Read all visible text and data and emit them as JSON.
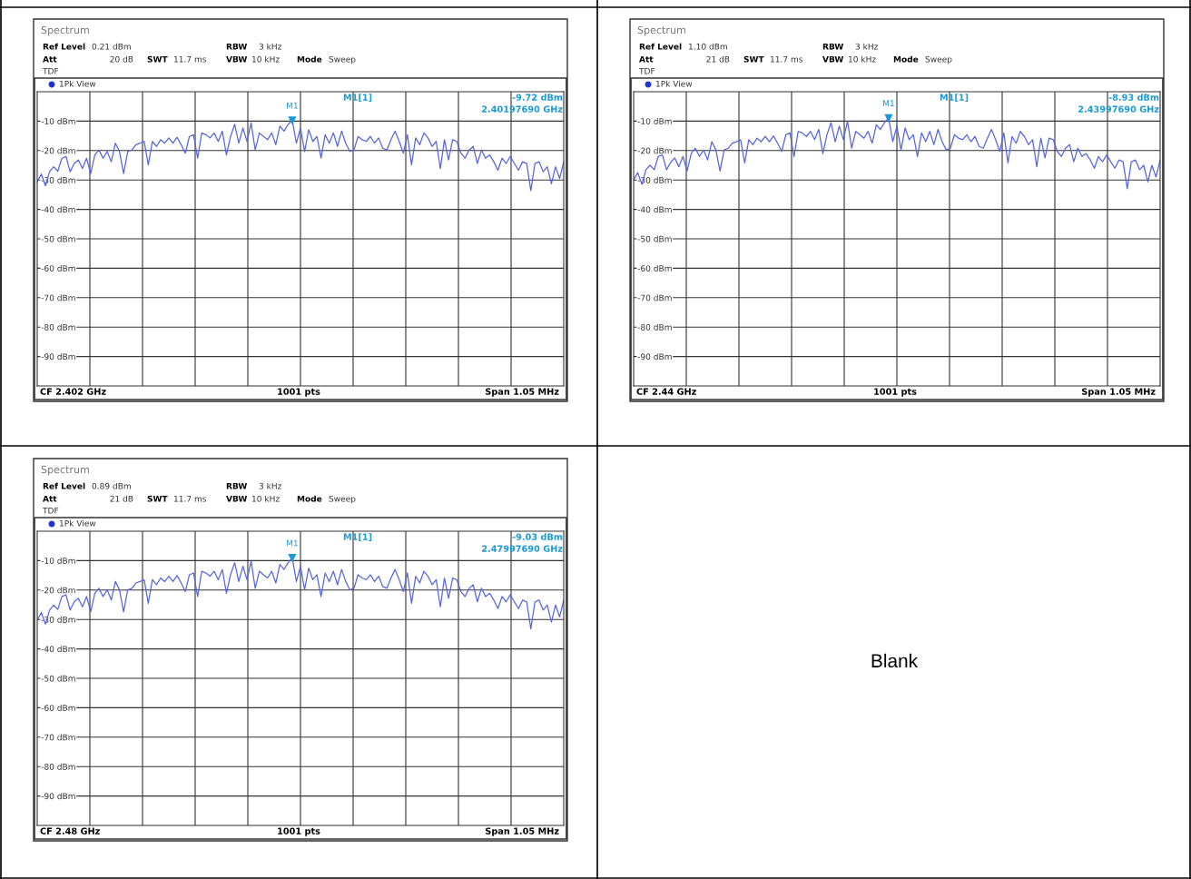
{
  "chart_data": [
    {
      "type": "line",
      "categories": [
        null,
        null,
        null,
        null,
        null,
        null,
        null,
        null,
        null,
        null,
        null,
        null,
        null,
        null,
        null,
        null,
        null,
        null,
        null,
        null,
        null,
        null,
        null,
        null,
        null,
        null,
        null,
        null,
        null,
        null,
        null,
        null,
        null,
        null,
        null,
        null,
        null,
        null,
        null,
        null,
        null,
        null,
        null,
        null,
        null,
        null,
        null,
        null,
        null,
        null,
        null,
        null,
        null,
        null,
        null,
        null,
        null,
        null,
        null,
        null,
        null,
        null,
        null,
        null,
        null,
        null,
        null,
        null,
        null,
        null,
        null,
        null,
        null,
        null,
        null,
        null,
        null,
        null,
        null,
        null,
        null,
        null,
        null,
        null,
        null,
        null,
        null,
        null,
        null,
        null,
        null,
        null,
        null,
        null,
        null,
        null,
        null,
        null,
        null,
        null,
        null,
        null,
        null,
        null,
        null,
        null,
        null,
        null,
        null,
        null,
        null,
        null,
        null,
        null,
        null,
        null,
        null,
        null,
        null,
        null,
        null,
        null,
        null,
        null,
        null,
        null,
        null,
        null,
        null
      ],
      "series": [
        {
          "color": "#5566dd",
          "values": [
            -30.7,
            -28,
            -32,
            -27.2,
            -25.5,
            -27,
            -22.6,
            -22,
            -27.2,
            -24.4,
            -23.2,
            -26.1,
            -22.6,
            -27.8,
            -21.5,
            -19.8,
            -22.6,
            -20.3,
            -23.8,
            -17.5,
            -20.3,
            -27.8,
            -20.3,
            -19.8,
            -18,
            -17.5,
            -16.9,
            -24.9,
            -16.9,
            -18.6,
            -16.3,
            -17.5,
            -15.7,
            -17.5,
            -15.5,
            -18,
            -20.9,
            -15.2,
            -14.6,
            -22.6,
            -14,
            -14.6,
            -15.7,
            -14,
            -16.9,
            -13.4,
            -21.5,
            -15.2,
            -11.1,
            -17.5,
            -12.3,
            -16.9,
            -10.6,
            -19.8,
            -14,
            -15.2,
            -16.3,
            -14,
            -18,
            -11.7,
            -13.4,
            -11.1,
            -9.7,
            -17.5,
            -12.3,
            -20.3,
            -12.9,
            -16.9,
            -15.2,
            -22.6,
            -14.6,
            -17.5,
            -14,
            -18.6,
            -13.4,
            -17.5,
            -20.3,
            -19.8,
            -15.2,
            -16.3,
            -16.9,
            -15.2,
            -17.5,
            -15.7,
            -19.2,
            -19.8,
            -16.3,
            -13.4,
            -16.9,
            -20.9,
            -14.6,
            -24.9,
            -15.7,
            -18,
            -14,
            -15.7,
            -18.6,
            -16.9,
            -26.1,
            -16.3,
            -23.2,
            -16.3,
            -16.9,
            -20.9,
            -22.6,
            -19.8,
            -18.6,
            -24.4,
            -19.8,
            -22.6,
            -21.5,
            -23.8,
            -26.7,
            -22.6,
            -24.4,
            -22,
            -24.4,
            -26.7,
            -23.8,
            -24.4,
            -33.6,
            -24.4,
            -23.8,
            -27.2,
            -25.5,
            -31.3,
            -25.5,
            -29.5,
            -23.8
          ]
        }
      ],
      "ylim": [
        -100,
        0
      ],
      "yticks": [
        {
          "value": -10,
          "label": "-10 dBm"
        },
        {
          "value": -20,
          "label": "-20 dBm"
        },
        {
          "value": -30,
          "label": "-30 dBm"
        },
        {
          "value": -40,
          "label": "-40 dBm"
        },
        {
          "value": -50,
          "label": "-50 dBm"
        },
        {
          "value": -60,
          "label": "-60 dBm"
        },
        {
          "value": -70,
          "label": "-70 dBm"
        },
        {
          "value": -80,
          "label": "-80 dBm"
        },
        {
          "value": -90,
          "label": "-90 dBm"
        }
      ],
      "grid": true,
      "tick_labels": "y",
      "annotations": [
        "Spectrum",
        "Ref Level",
        "0.21 dBm",
        "Att",
        "20 dB",
        "SWT",
        "11.7 ms",
        "RBW",
        "3 kHz",
        "VBW",
        "10 kHz",
        "Mode",
        "Sweep",
        "TDF",
        "1Pk View",
        "M1[1]",
        "-9.72 dBm",
        "2.40197690 GHz",
        "CF 2.402 GHz",
        "1001 pts",
        "Span 1.05 MHz",
        {
          "text": "M1",
          "y": -9.72
        }
      ]
    },
    {
      "type": "line",
      "categories": [
        null,
        null,
        null,
        null,
        null,
        null,
        null,
        null,
        null,
        null,
        null,
        null,
        null,
        null,
        null,
        null,
        null,
        null,
        null,
        null,
        null,
        null,
        null,
        null,
        null,
        null,
        null,
        null,
        null,
        null,
        null,
        null,
        null,
        null,
        null,
        null,
        null,
        null,
        null,
        null,
        null,
        null,
        null,
        null,
        null,
        null,
        null,
        null,
        null,
        null,
        null,
        null,
        null,
        null,
        null,
        null,
        null,
        null,
        null,
        null,
        null,
        null,
        null,
        null,
        null,
        null,
        null,
        null,
        null,
        null,
        null,
        null,
        null,
        null,
        null,
        null,
        null,
        null,
        null,
        null,
        null,
        null,
        null,
        null,
        null,
        null,
        null,
        null,
        null,
        null,
        null,
        null,
        null,
        null,
        null,
        null,
        null,
        null,
        null,
        null,
        null,
        null,
        null,
        null,
        null,
        null,
        null,
        null,
        null,
        null,
        null,
        null,
        null,
        null,
        null,
        null,
        null,
        null,
        null,
        null,
        null,
        null,
        null,
        null,
        null,
        null,
        null,
        null,
        null
      ],
      "series": [
        {
          "color": "#5566dd",
          "values": [
            -30,
            -27.5,
            -31.5,
            -26.5,
            -25,
            -26.5,
            -22,
            -21.5,
            -26.5,
            -24,
            -22.5,
            -25.5,
            -22,
            -27,
            -21,
            -19.2,
            -22,
            -19.8,
            -23.2,
            -17,
            -19.8,
            -27,
            -19.8,
            -19.2,
            -17.5,
            -17,
            -16.3,
            -24.2,
            -16.3,
            -18,
            -15.8,
            -17,
            -15.2,
            -17,
            -15,
            -17.5,
            -20.3,
            -14.6,
            -14,
            -22,
            -13.5,
            -14,
            -15.2,
            -13.5,
            -16.3,
            -12.8,
            -21,
            -14.6,
            -10.5,
            -17,
            -11.7,
            -16.3,
            -10,
            -19.2,
            -13.5,
            -14.6,
            -15.8,
            -13.5,
            -17.5,
            -11.2,
            -12.8,
            -10.5,
            -8.9,
            -17,
            -11.7,
            -19.8,
            -12.3,
            -16.3,
            -14.6,
            -22,
            -14,
            -17,
            -13.5,
            -18,
            -12.8,
            -17,
            -19.8,
            -19.2,
            -14.6,
            -15.8,
            -16.3,
            -14.6,
            -17,
            -15.2,
            -18.6,
            -19.2,
            -15.8,
            -12.8,
            -16.3,
            -20.3,
            -14,
            -24.2,
            -15.2,
            -17.5,
            -13.5,
            -15.2,
            -18,
            -16.3,
            -25.5,
            -15.8,
            -22.5,
            -15.8,
            -16.3,
            -20.3,
            -22,
            -19.2,
            -18,
            -23.8,
            -19.2,
            -22,
            -21,
            -23.2,
            -26,
            -22,
            -23.8,
            -21.5,
            -23.8,
            -26,
            -23.2,
            -23.8,
            -33,
            -23.8,
            -23.2,
            -26.5,
            -25,
            -30.7,
            -25,
            -29,
            -23.2
          ]
        }
      ],
      "ylim": [
        -100,
        0
      ],
      "yticks": [
        {
          "value": -10,
          "label": "-10 dBm"
        },
        {
          "value": -20,
          "label": "-20 dBm"
        },
        {
          "value": -30,
          "label": "-30 dBm"
        },
        {
          "value": -40,
          "label": "-40 dBm"
        },
        {
          "value": -50,
          "label": "-50 dBm"
        },
        {
          "value": -60,
          "label": "-60 dBm"
        },
        {
          "value": -70,
          "label": "-70 dBm"
        },
        {
          "value": -80,
          "label": "-80 dBm"
        },
        {
          "value": -90,
          "label": "-90 dBm"
        }
      ],
      "grid": true,
      "tick_labels": "y",
      "annotations": [
        "Spectrum",
        "Ref Level",
        "1.10 dBm",
        "Att",
        "21 dB",
        "SWT",
        "11.7 ms",
        "RBW",
        "3 kHz",
        "VBW",
        "10 kHz",
        "Mode",
        "Sweep",
        "TDF",
        "1Pk View",
        "M1[1]",
        "-8.93 dBm",
        "2.43997690 GHz",
        "CF 2.44 GHz",
        "1001 pts",
        "Span 1.05 MHz",
        {
          "text": "M1",
          "y": -8.93
        }
      ]
    },
    {
      "type": "line",
      "categories": [
        null,
        null,
        null,
        null,
        null,
        null,
        null,
        null,
        null,
        null,
        null,
        null,
        null,
        null,
        null,
        null,
        null,
        null,
        null,
        null,
        null,
        null,
        null,
        null,
        null,
        null,
        null,
        null,
        null,
        null,
        null,
        null,
        null,
        null,
        null,
        null,
        null,
        null,
        null,
        null,
        null,
        null,
        null,
        null,
        null,
        null,
        null,
        null,
        null,
        null,
        null,
        null,
        null,
        null,
        null,
        null,
        null,
        null,
        null,
        null,
        null,
        null,
        null,
        null,
        null,
        null,
        null,
        null,
        null,
        null,
        null,
        null,
        null,
        null,
        null,
        null,
        null,
        null,
        null,
        null,
        null,
        null,
        null,
        null,
        null,
        null,
        null,
        null,
        null,
        null,
        null,
        null,
        null,
        null,
        null,
        null,
        null,
        null,
        null,
        null,
        null,
        null,
        null,
        null,
        null,
        null,
        null,
        null,
        null,
        null,
        null,
        null,
        null,
        null,
        null,
        null,
        null,
        null,
        null,
        null,
        null,
        null,
        null,
        null,
        null,
        null,
        null,
        null,
        null
      ],
      "series": [
        {
          "color": "#5566dd",
          "values": [
            -30.2,
            -27.6,
            -31.6,
            -26.8,
            -25.1,
            -26.6,
            -22.2,
            -21.6,
            -26.8,
            -24,
            -22.8,
            -25.7,
            -22.2,
            -27.4,
            -21.1,
            -19.4,
            -22.2,
            -19.9,
            -23.4,
            -17.1,
            -19.9,
            -27.4,
            -19.9,
            -19.4,
            -17.6,
            -17.1,
            -16.5,
            -24.5,
            -16.5,
            -18.2,
            -15.9,
            -17.1,
            -15.3,
            -17.1,
            -15.1,
            -17.6,
            -20.5,
            -14.8,
            -14.2,
            -22.2,
            -13.6,
            -14.2,
            -15.3,
            -13.6,
            -16.5,
            -13,
            -21.1,
            -14.8,
            -10.7,
            -17.1,
            -11.9,
            -16.5,
            -10.2,
            -19.4,
            -13.6,
            -14.8,
            -15.9,
            -13.6,
            -17.6,
            -11.3,
            -13,
            -10.7,
            -9,
            -17.1,
            -11.9,
            -19.9,
            -12.5,
            -16.5,
            -14.8,
            -22.2,
            -14.2,
            -17.1,
            -13.6,
            -18.2,
            -13,
            -17.1,
            -19.9,
            -19.4,
            -14.8,
            -15.9,
            -16.5,
            -14.8,
            -17.1,
            -15.3,
            -18.8,
            -19.4,
            -15.9,
            -13,
            -16.5,
            -20.5,
            -14.2,
            -24.5,
            -15.3,
            -17.6,
            -13.6,
            -15.3,
            -18.2,
            -16.5,
            -25.7,
            -15.9,
            -22.8,
            -15.9,
            -16.5,
            -20.5,
            -22.2,
            -19.4,
            -18.2,
            -24,
            -19.4,
            -22.2,
            -21.1,
            -23.4,
            -26.3,
            -22.2,
            -24,
            -21.6,
            -24,
            -26.3,
            -23.4,
            -24,
            -33.2,
            -24,
            -23.4,
            -26.8,
            -25.1,
            -30.9,
            -25.1,
            -29.1,
            -23.4
          ]
        }
      ],
      "ylim": [
        -100,
        0
      ],
      "yticks": [
        {
          "value": -10,
          "label": "-10 dBm"
        },
        {
          "value": -20,
          "label": "-20 dBm"
        },
        {
          "value": -30,
          "label": "-30 dBm"
        },
        {
          "value": -40,
          "label": "-40 dBm"
        },
        {
          "value": -50,
          "label": "-50 dBm"
        },
        {
          "value": -60,
          "label": "-60 dBm"
        },
        {
          "value": -70,
          "label": "-70 dBm"
        },
        {
          "value": -80,
          "label": "-80 dBm"
        },
        {
          "value": -90,
          "label": "-90 dBm"
        }
      ],
      "grid": true,
      "tick_labels": "y",
      "annotations": [
        "Spectrum",
        "Ref Level",
        "0.89 dBm",
        "Att",
        "21 dB",
        "SWT",
        "11.7 ms",
        "RBW",
        "3 kHz",
        "VBW",
        "10 kHz",
        "Mode",
        "Sweep",
        "TDF",
        "1Pk View",
        "M1[1]",
        "-9.03 dBm",
        "2.47997690 GHz",
        "CF 2.48 GHz",
        "1001 pts",
        "Span 1.05 MHz",
        {
          "text": "M1",
          "y": -9.03
        }
      ]
    },
    {
      "type": "other",
      "annotations": [
        "Blank"
      ]
    }
  ]
}
